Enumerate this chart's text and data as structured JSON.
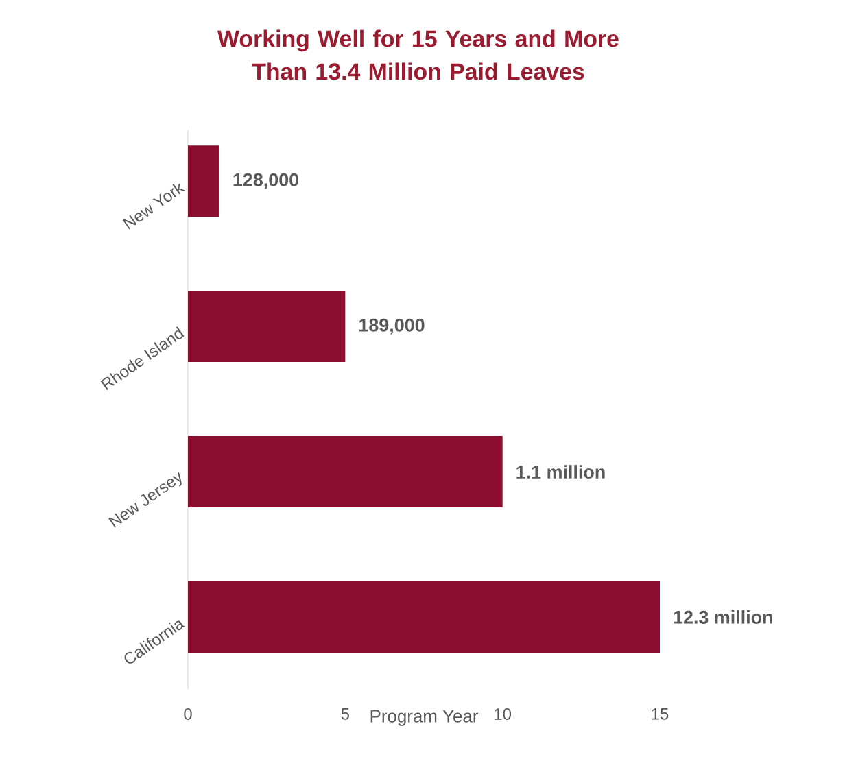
{
  "chart_data": {
    "type": "bar",
    "orientation": "horizontal",
    "title": "Working Well for 15 Years and More\nThan 13.4 Million Paid Leaves",
    "xlabel": "Program Year",
    "categories": [
      "New York",
      "Rhode Island",
      "New Jersey",
      "California"
    ],
    "values": [
      1,
      5,
      10,
      15
    ],
    "annotations": [
      {
        "text": "128,000",
        "x": 1,
        "y": "New York"
      },
      {
        "text": "189,000",
        "x": 5,
        "y": "Rhode Island"
      },
      {
        "text": "1.1 million",
        "x": 10,
        "y": "New Jersey"
      },
      {
        "text": "12.3 million",
        "x": 15,
        "y": "California"
      }
    ],
    "color": "#8b0d30",
    "xlim": [
      0,
      15
    ],
    "xticks": [
      0,
      5,
      10,
      15
    ]
  }
}
